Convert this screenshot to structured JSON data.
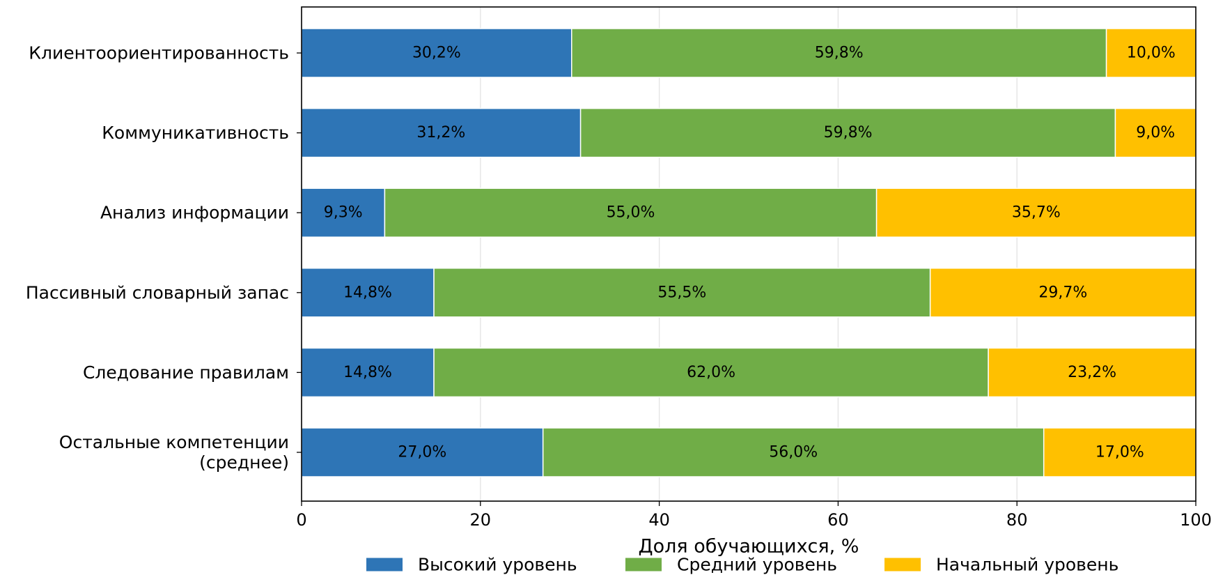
{
  "chart_data": {
    "type": "bar",
    "orientation": "horizontal",
    "stacked": true,
    "categories": [
      [
        "Клиентоориентированность"
      ],
      [
        "Коммуникативность"
      ],
      [
        "Анализ информации"
      ],
      [
        "Пассивный словарный запас"
      ],
      [
        "Следование правилам"
      ],
      [
        "Остальные компетенции",
        "(среднее)"
      ]
    ],
    "series": [
      {
        "name": "Высокий уровень",
        "color": "#2e75b6",
        "values": [
          30.2,
          31.2,
          9.3,
          14.8,
          14.8,
          27.0
        ],
        "labels": [
          "30,2%",
          "31,2%",
          "9,3%",
          "14,8%",
          "14,8%",
          "27,0%"
        ]
      },
      {
        "name": "Средний уровень",
        "color": "#70ad47",
        "values": [
          59.8,
          59.8,
          55.0,
          55.5,
          62.0,
          56.0
        ],
        "labels": [
          "59,8%",
          "59,8%",
          "55,0%",
          "55,5%",
          "62,0%",
          "56,0%"
        ]
      },
      {
        "name": "Начальный уровень",
        "color": "#ffc000",
        "values": [
          10.0,
          9.0,
          35.7,
          29.7,
          23.2,
          17.0
        ],
        "labels": [
          "10,0%",
          "9,0%",
          "35,7%",
          "29,7%",
          "23,2%",
          "17,0%"
        ]
      }
    ],
    "xlabel": "Доля обучающихся, %",
    "ylabel": "",
    "xlim": [
      0,
      100
    ],
    "xticks": [
      0,
      20,
      40,
      60,
      80,
      100
    ],
    "xtick_labels": [
      "0",
      "20",
      "40",
      "60",
      "80",
      "100"
    ],
    "grid": "vertical",
    "legend_position": "bottom"
  }
}
